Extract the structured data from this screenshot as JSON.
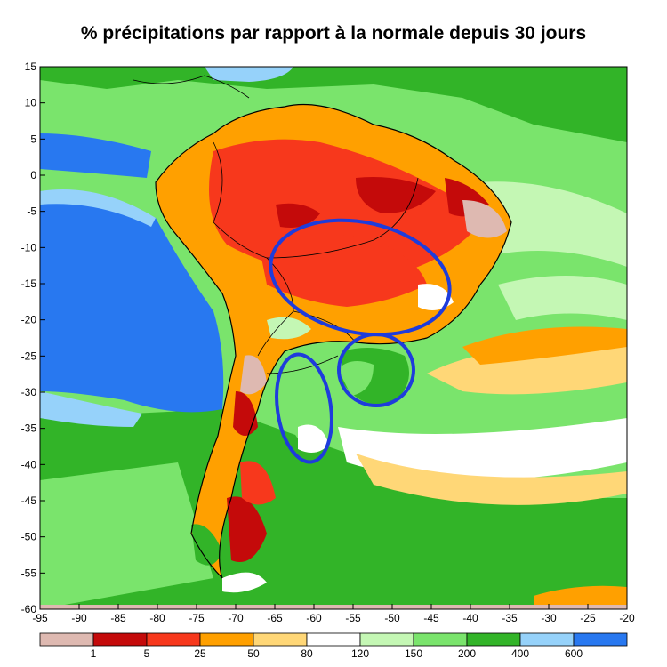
{
  "title": "% précipitations par rapport à la normale depuis 30 jours",
  "axes": {
    "x_ticks": [
      {
        "value": -95,
        "label": "-95"
      },
      {
        "value": -90,
        "label": "-90"
      },
      {
        "value": -85,
        "label": "-85"
      },
      {
        "value": -80,
        "label": "-80"
      },
      {
        "value": -75,
        "label": "-75"
      },
      {
        "value": -70,
        "label": "-70"
      },
      {
        "value": -65,
        "label": "-65"
      },
      {
        "value": -60,
        "label": "-60"
      },
      {
        "value": -55,
        "label": "-55"
      },
      {
        "value": -50,
        "label": "-50"
      },
      {
        "value": -45,
        "label": "-45"
      },
      {
        "value": -40,
        "label": "-40"
      },
      {
        "value": -35,
        "label": "-35"
      },
      {
        "value": -30,
        "label": "-30"
      },
      {
        "value": -25,
        "label": "-25"
      },
      {
        "value": -20,
        "label": "-20"
      }
    ],
    "y_ticks": [
      {
        "value": 15,
        "label": "15"
      },
      {
        "value": 10,
        "label": "10"
      },
      {
        "value": 5,
        "label": "5"
      },
      {
        "value": 0,
        "label": "0"
      },
      {
        "value": -5,
        "label": "-5"
      },
      {
        "value": -10,
        "label": "-10"
      },
      {
        "value": -15,
        "label": "-15"
      },
      {
        "value": -20,
        "label": "-20"
      },
      {
        "value": -25,
        "label": "-25"
      },
      {
        "value": -30,
        "label": "-30"
      },
      {
        "value": -35,
        "label": "-35"
      },
      {
        "value": -40,
        "label": "-40"
      },
      {
        "value": -45,
        "label": "-45"
      },
      {
        "value": -50,
        "label": "-50"
      },
      {
        "value": -55,
        "label": "-55"
      },
      {
        "value": -60,
        "label": "-60"
      }
    ],
    "lon_range": [
      -95,
      -20
    ],
    "lat_range": [
      -60,
      15
    ]
  },
  "colorbar": {
    "colors": [
      "#deb9b1",
      "#c40a0a",
      "#f7381c",
      "#ffa000",
      "#ffd777",
      "#ffffff",
      "#c4f7b4",
      "#7ae46c",
      "#32b428",
      "#96d2fa",
      "#2878f0"
    ],
    "labels": [
      "1",
      "5",
      "25",
      "50",
      "80",
      "120",
      "150",
      "200",
      "400",
      "600"
    ]
  },
  "colors": {
    "ocean_wet": "#2878f0",
    "wet": "#32b428",
    "dry": "#f7381c",
    "very_dry": "#c40a0a",
    "highlight_ellipse": "#1e3cdc"
  }
}
